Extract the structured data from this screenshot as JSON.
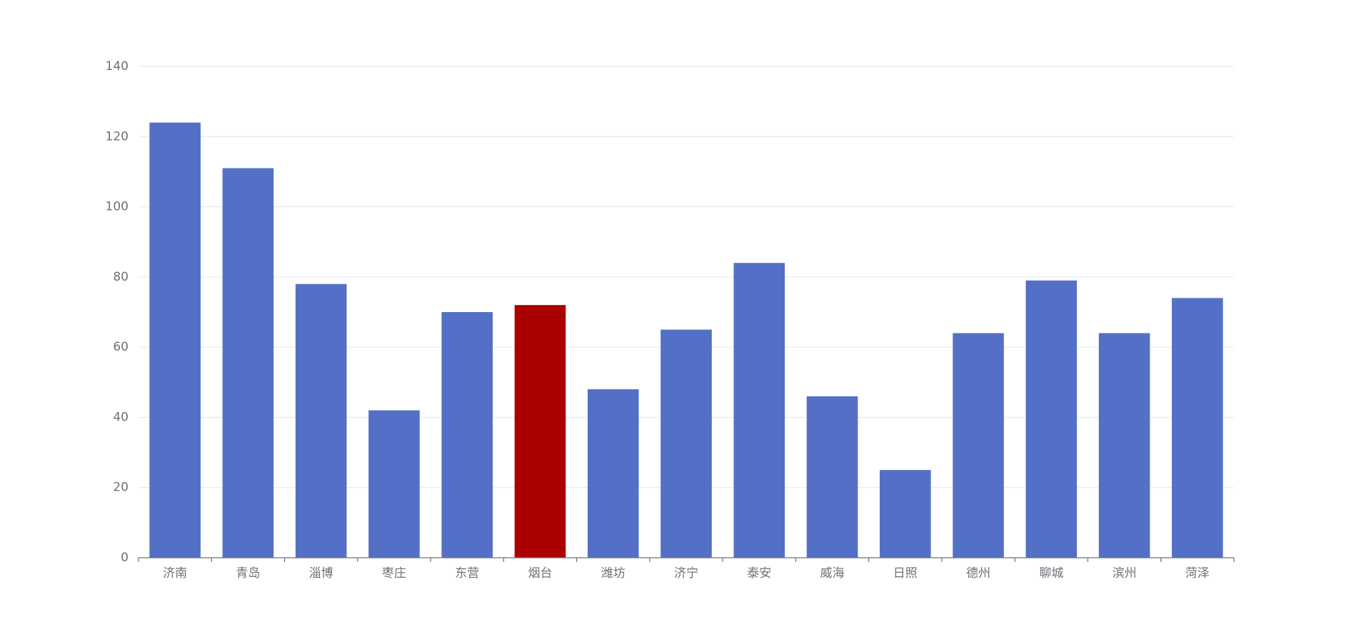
{
  "chart_data": {
    "type": "bar",
    "categories": [
      "济南",
      "青岛",
      "淄博",
      "枣庄",
      "东营",
      "烟台",
      "潍坊",
      "济宁",
      "泰安",
      "威海",
      "日照",
      "德州",
      "聊城",
      "滨州",
      "菏泽"
    ],
    "values": [
      124,
      111,
      78,
      42,
      70,
      72,
      48,
      65,
      84,
      46,
      25,
      64,
      79,
      64,
      74
    ],
    "colors": [
      "#5470c6",
      "#5470c6",
      "#5470c6",
      "#5470c6",
      "#5470c6",
      "#aa0000",
      "#5470c6",
      "#5470c6",
      "#5470c6",
      "#5470c6",
      "#5470c6",
      "#5470c6",
      "#5470c6",
      "#5470c6",
      "#5470c6"
    ],
    "ylim": [
      0,
      140
    ],
    "yticks": [
      0,
      20,
      40,
      60,
      80,
      100,
      120,
      140
    ],
    "grid": true
  }
}
